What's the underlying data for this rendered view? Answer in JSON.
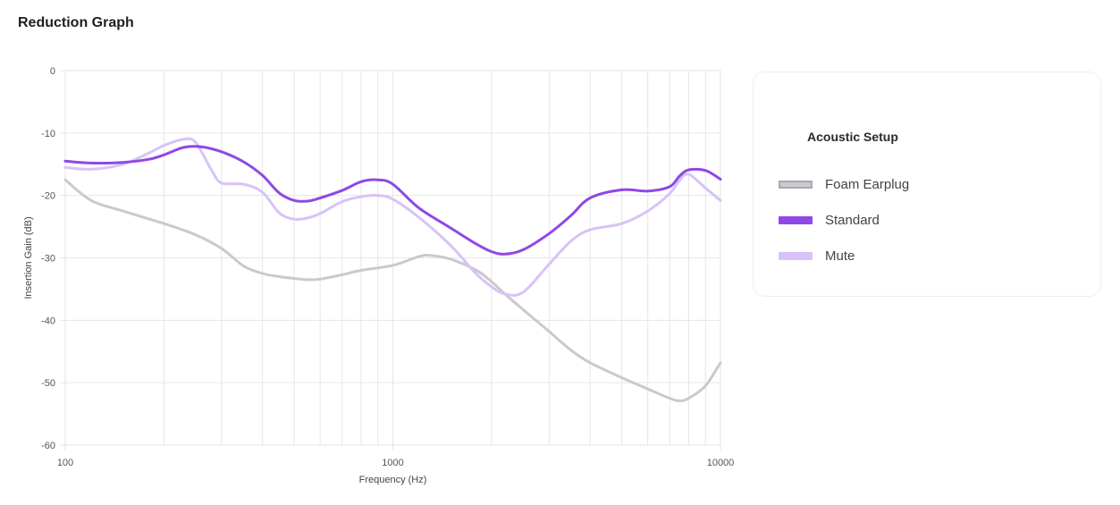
{
  "page": {
    "title": "Reduction Graph"
  },
  "legend": {
    "title": "Acoustic Setup",
    "items": [
      {
        "label": "Foam Earplug",
        "color": "#cbc8cf",
        "border": "#a9a6ad"
      },
      {
        "label": "Standard",
        "color": "#8f48e6",
        "border": "#8f48e6"
      },
      {
        "label": "Mute",
        "color": "#d7c3f7",
        "border": "#d7c3f7"
      }
    ]
  },
  "chart_data": {
    "type": "line",
    "title": "",
    "xlabel": "Frequency (Hz)",
    "ylabel": "Insertion Gain (dB)",
    "x_scale": "log",
    "xlim": [
      100,
      10000
    ],
    "ylim": [
      -60,
      0
    ],
    "x_tick_labels": [
      "100",
      "1000",
      "10000"
    ],
    "y_ticks": [
      0,
      -10,
      -20,
      -30,
      -40,
      -50,
      -60
    ],
    "grid": true,
    "legend_position": "right",
    "series": [
      {
        "name": "Foam Earplug",
        "color": "#cbc8cf",
        "x": [
          100,
          120,
          150,
          200,
          250,
          300,
          350,
          400,
          450,
          500,
          550,
          600,
          700,
          800,
          1000,
          1200,
          1300,
          1500,
          1800,
          2000,
          2200,
          2500,
          3000,
          3500,
          4000,
          5000,
          6000,
          7000,
          7500,
          8000,
          9000,
          10000
        ],
        "values": [
          -17.5,
          -20.8,
          -22.5,
          -24.5,
          -26.3,
          -28.5,
          -31.3,
          -32.5,
          -33.0,
          -33.3,
          -33.5,
          -33.4,
          -32.7,
          -32.0,
          -31.2,
          -29.8,
          -29.6,
          -30.2,
          -32.0,
          -33.8,
          -35.8,
          -38.3,
          -41.8,
          -44.8,
          -46.8,
          -49.2,
          -51.0,
          -52.5,
          -52.9,
          -52.5,
          -50.5,
          -46.8
        ]
      },
      {
        "name": "Standard",
        "color": "#8f48e6",
        "x": [
          100,
          120,
          150,
          180,
          200,
          230,
          260,
          300,
          350,
          400,
          450,
          500,
          550,
          600,
          700,
          800,
          900,
          1000,
          1200,
          1500,
          1800,
          2000,
          2200,
          2500,
          3000,
          3500,
          4000,
          5000,
          6000,
          7000,
          7500,
          8000,
          9000,
          10000
        ],
        "values": [
          -14.5,
          -14.8,
          -14.7,
          -14.2,
          -13.5,
          -12.3,
          -12.2,
          -13.0,
          -14.6,
          -16.8,
          -19.6,
          -20.8,
          -20.9,
          -20.4,
          -19.2,
          -17.8,
          -17.5,
          -18.2,
          -22.0,
          -25.2,
          -27.8,
          -29.0,
          -29.4,
          -28.7,
          -26.1,
          -23.2,
          -20.4,
          -19.1,
          -19.3,
          -18.6,
          -16.9,
          -15.9,
          -16.0,
          -17.4
        ]
      },
      {
        "name": "Mute",
        "color": "#d7c3f7",
        "x": [
          100,
          120,
          150,
          180,
          200,
          230,
          250,
          280,
          300,
          350,
          400,
          450,
          500,
          550,
          600,
          700,
          800,
          900,
          1000,
          1200,
          1500,
          1800,
          2000,
          2200,
          2500,
          3000,
          3500,
          4000,
          5000,
          6000,
          7000,
          7500,
          8000,
          9000,
          10000
        ],
        "values": [
          -15.5,
          -15.8,
          -15.0,
          -13.2,
          -12.0,
          -11.0,
          -11.5,
          -16.0,
          -18.0,
          -18.2,
          -19.5,
          -22.8,
          -23.8,
          -23.6,
          -22.9,
          -21.0,
          -20.2,
          -20.0,
          -20.6,
          -23.5,
          -28.0,
          -32.6,
          -34.6,
          -35.8,
          -35.5,
          -31.0,
          -27.3,
          -25.5,
          -24.5,
          -22.5,
          -19.7,
          -17.6,
          -16.6,
          -18.8,
          -20.8
        ]
      }
    ]
  }
}
